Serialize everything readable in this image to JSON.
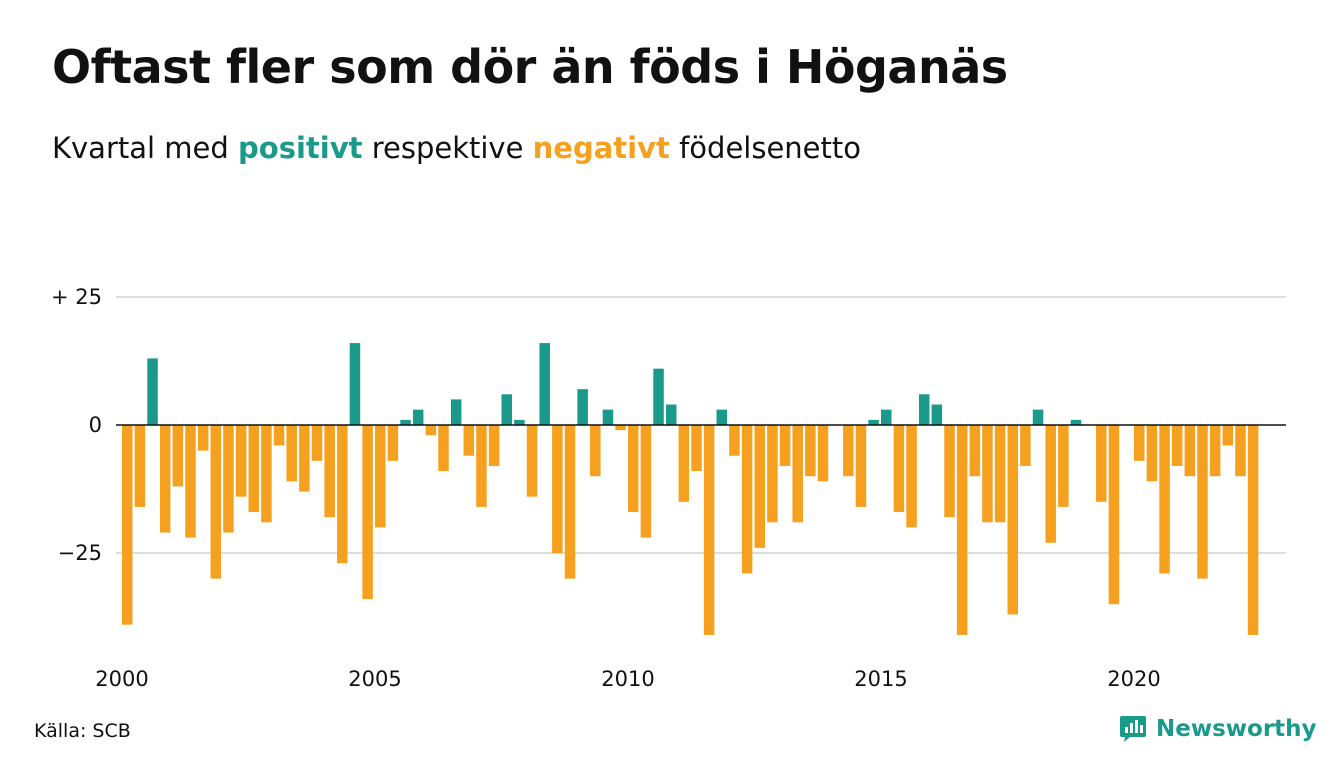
{
  "title": "Oftast fler som dör än föds i Höganäs",
  "subtitle": {
    "prefix": "Kvartal med",
    "positive_word": "positivt",
    "middle": "respektive",
    "negative_word": "negativt",
    "suffix": "födelsenetto"
  },
  "source": "Källa: SCB",
  "brand": "Newsworthy",
  "colors": {
    "positive": "#1a9a8a",
    "negative": "#f6a01f",
    "grid": "#dddddd",
    "zero_line": "#111111"
  },
  "chart_data": {
    "type": "bar",
    "x_start": "2000 Q1",
    "y_ticks": [
      {
        "value": 25,
        "label": "+ 25"
      },
      {
        "value": 0,
        "label": "0"
      },
      {
        "value": -25,
        "label": "−25"
      }
    ],
    "x_ticks": [
      {
        "year": 2000,
        "label": "2000"
      },
      {
        "year": 2005,
        "label": "2005"
      },
      {
        "year": 2010,
        "label": "2010"
      },
      {
        "year": 2015,
        "label": "2015"
      },
      {
        "year": 2020,
        "label": "2020"
      }
    ],
    "ylim": [
      -42,
      26
    ],
    "values": [
      -39,
      -16,
      13,
      -21,
      -12,
      -22,
      -5,
      -30,
      -21,
      -14,
      -17,
      -19,
      -4,
      -11,
      -13,
      -7,
      -18,
      -27,
      16,
      -34,
      -20,
      -7,
      1,
      3,
      -2,
      -9,
      5,
      -6,
      -16,
      -8,
      6,
      1,
      -14,
      16,
      -25,
      -30,
      7,
      -10,
      3,
      -1,
      -17,
      -22,
      11,
      4,
      -15,
      -9,
      -41,
      3,
      -6,
      -29,
      -24,
      -19,
      -8,
      -19,
      -10,
      -11,
      0,
      -10,
      -16,
      1,
      3,
      -17,
      -20,
      6,
      4,
      -18,
      -41,
      -10,
      -19,
      -19,
      -37,
      -8,
      3,
      -23,
      -16,
      1,
      0,
      -15,
      -35,
      0,
      -7,
      -11,
      -29,
      -8,
      -10,
      -30,
      -10,
      -4,
      -10,
      -41
    ]
  }
}
